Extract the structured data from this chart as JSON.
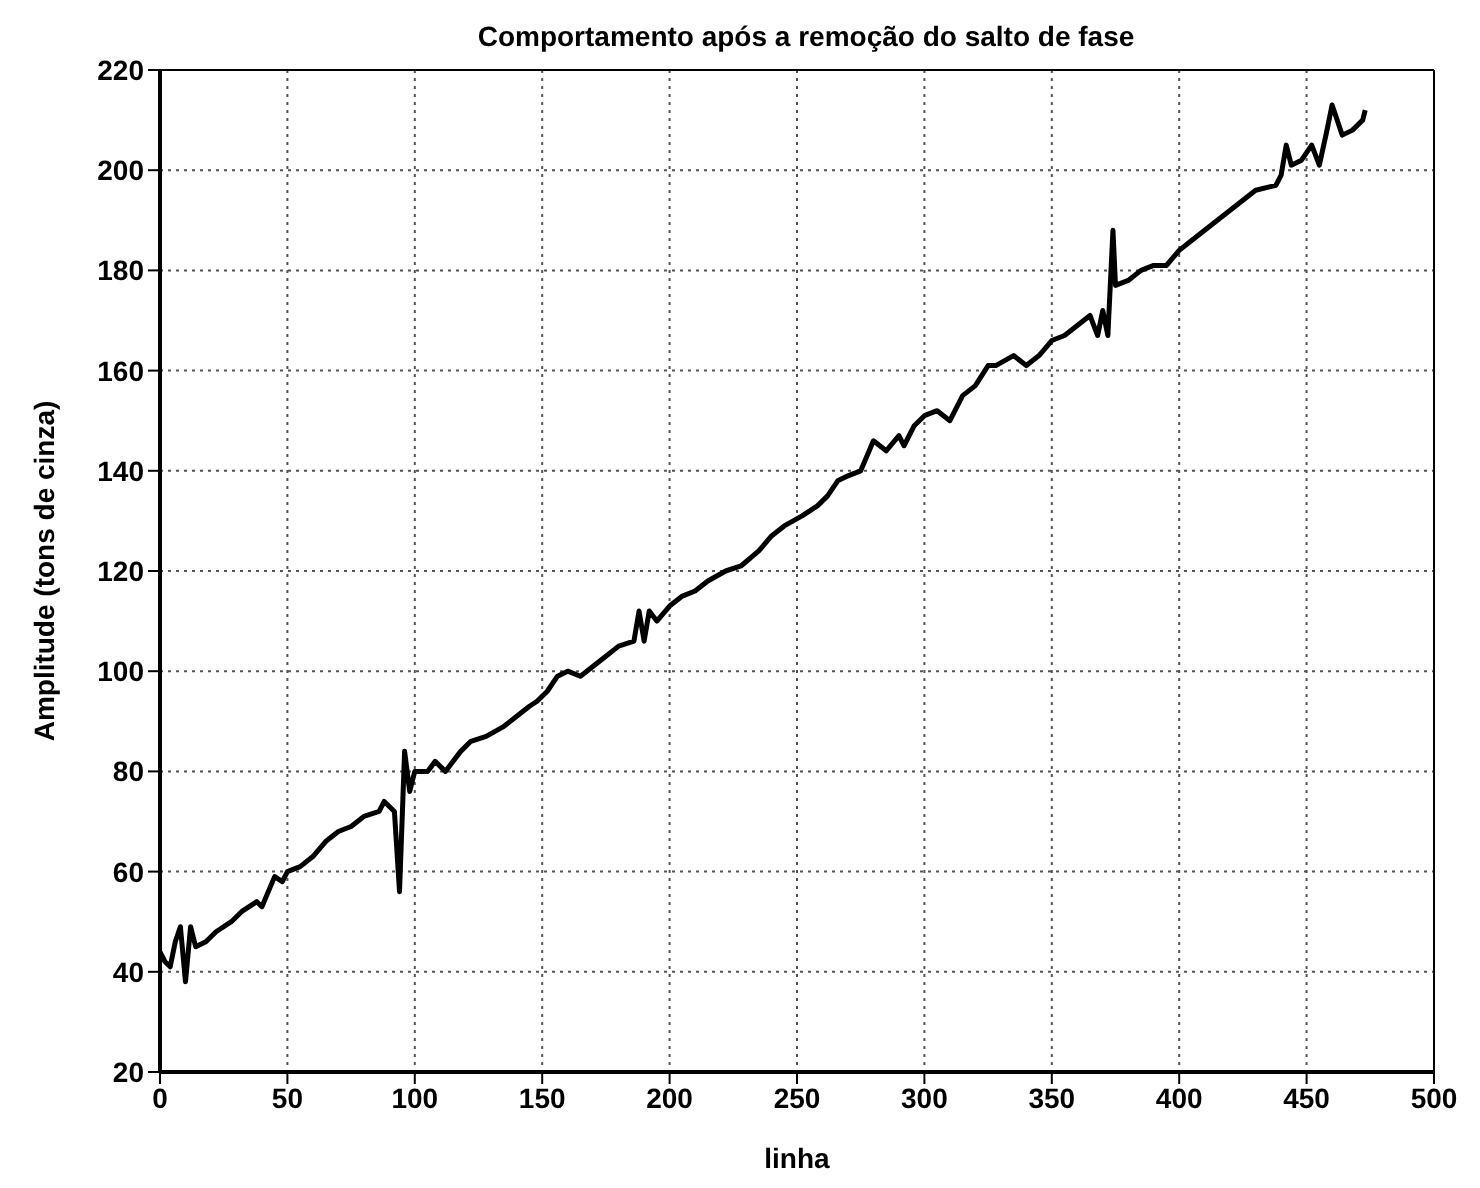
{
  "chart_data": {
    "type": "line",
    "title": "Comportamento após a remoção do salto de fase",
    "xlabel": "linha",
    "ylabel": "Amplitude (tons de cinza)",
    "xlim": [
      0,
      500
    ],
    "xticks": [
      0,
      50,
      100,
      150,
      200,
      250,
      300,
      350,
      400,
      450,
      500
    ],
    "ylim": [
      20,
      220
    ],
    "yticks": [
      20,
      40,
      60,
      80,
      100,
      120,
      140,
      160,
      180,
      200,
      220
    ],
    "grid": true,
    "legend": false,
    "marker": "none",
    "line_style": "solid",
    "x": [
      0,
      2,
      4,
      6,
      8,
      10,
      12,
      14,
      18,
      22,
      28,
      32,
      38,
      40,
      45,
      48,
      50,
      55,
      60,
      65,
      70,
      75,
      80,
      86,
      88,
      92,
      94,
      96,
      98,
      100,
      105,
      108,
      112,
      118,
      122,
      128,
      135,
      140,
      145,
      148,
      152,
      156,
      160,
      165,
      170,
      175,
      180,
      186,
      188,
      190,
      192,
      195,
      200,
      205,
      210,
      215,
      222,
      228,
      235,
      240,
      245,
      252,
      258,
      262,
      266,
      270,
      275,
      280,
      285,
      290,
      292,
      296,
      300,
      305,
      310,
      315,
      320,
      325,
      328,
      335,
      340,
      345,
      350,
      355,
      360,
      365,
      368,
      370,
      372,
      374,
      375,
      380,
      385,
      390,
      395,
      400,
      405,
      410,
      415,
      420,
      425,
      430,
      438,
      440,
      442,
      444,
      448,
      452,
      455,
      458,
      460,
      464,
      468,
      472,
      473
    ],
    "series": [
      {
        "color": "#000000",
        "values": [
          44,
          42,
          41,
          46,
          49,
          38,
          49,
          45,
          46,
          48,
          50,
          52,
          54,
          53,
          59,
          58,
          60,
          61,
          63,
          66,
          68,
          69,
          71,
          72,
          74,
          72,
          56,
          84,
          76,
          80,
          80,
          82,
          80,
          84,
          86,
          87,
          89,
          91,
          93,
          94,
          96,
          99,
          100,
          99,
          101,
          103,
          105,
          106,
          112,
          106,
          112,
          110,
          113,
          115,
          116,
          118,
          120,
          121,
          124,
          127,
          129,
          131,
          133,
          135,
          138,
          139,
          140,
          146,
          144,
          147,
          145,
          149,
          151,
          152,
          150,
          155,
          157,
          161,
          161,
          163,
          161,
          163,
          166,
          167,
          169,
          171,
          167,
          172,
          167,
          188,
          177,
          178,
          180,
          181,
          181,
          184,
          186,
          188,
          190,
          192,
          194,
          196,
          197,
          199,
          205,
          201,
          202,
          205,
          201,
          208,
          213,
          207,
          208,
          210,
          212
        ]
      }
    ]
  }
}
